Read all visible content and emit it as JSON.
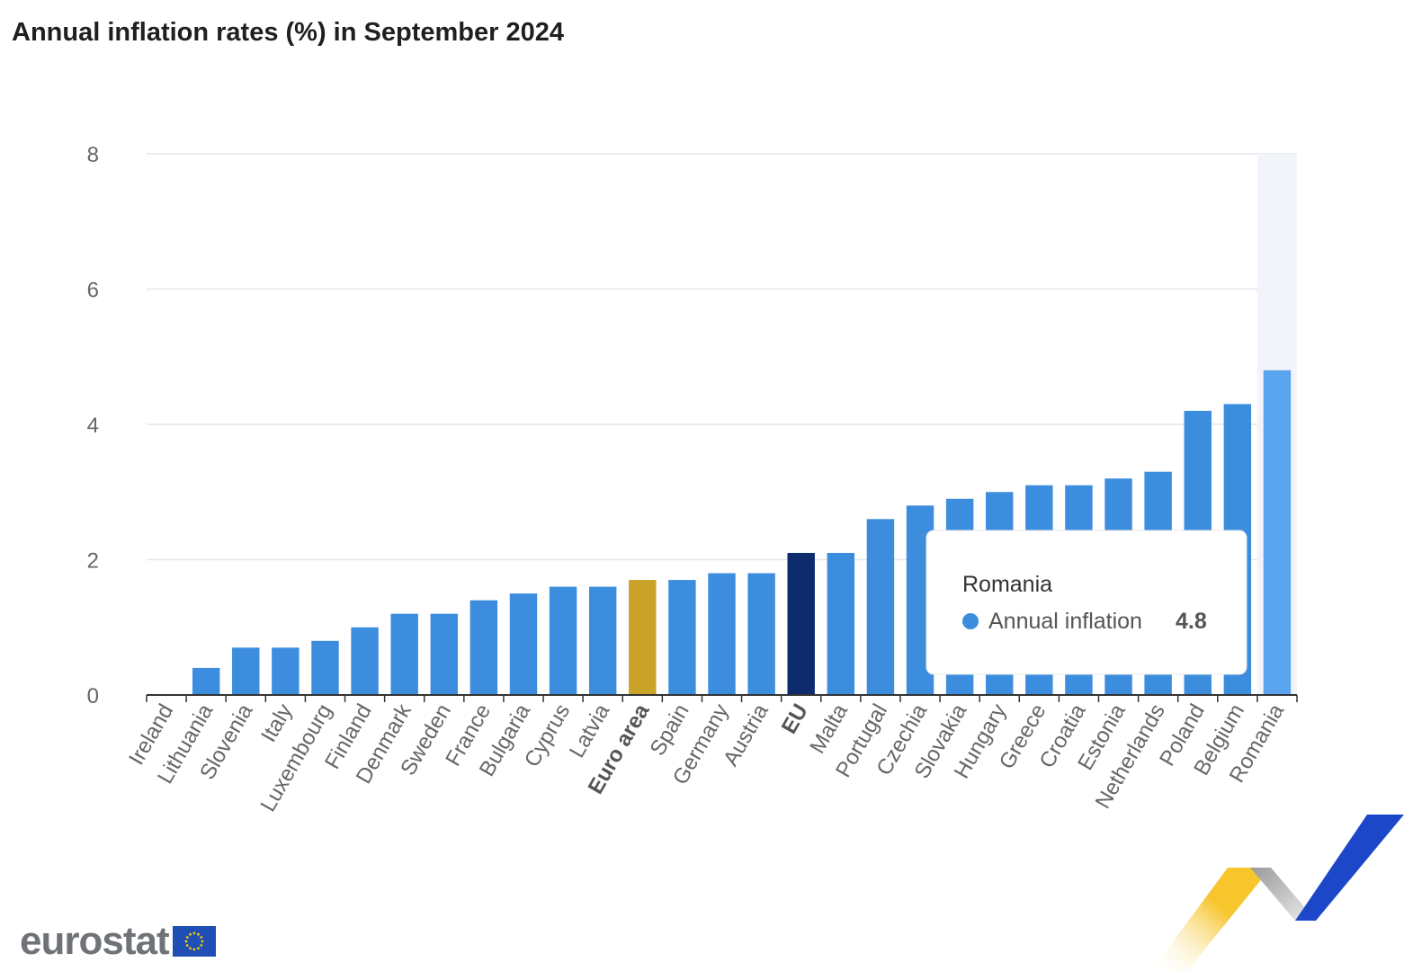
{
  "title": "Annual inflation rates (%) in September 2024",
  "logo": {
    "text": "eurostat",
    "flag_icon": "eu-flag-icon"
  },
  "colors": {
    "bar": "#3d8ddf",
    "highlight": "#5aa4ef",
    "euro_area": "#c9a227",
    "eu": "#0e2b6e",
    "grid": "#e3e7ec"
  },
  "tooltip": {
    "country": "Romania",
    "series": "Annual inflation",
    "value": "4.8"
  },
  "chart_data": {
    "type": "bar",
    "title": "Annual inflation rates (%) in September 2024",
    "xlabel": "",
    "ylabel": "",
    "ylim": [
      0,
      8
    ],
    "yticks": [
      0,
      2,
      4,
      6,
      8
    ],
    "grid": true,
    "categories": [
      "Ireland",
      "Lithuania",
      "Slovenia",
      "Italy",
      "Luxembourg",
      "Finland",
      "Denmark",
      "Sweden",
      "France",
      "Bulgaria",
      "Cyprus",
      "Latvia",
      "Euro area",
      "Spain",
      "Germany",
      "Austria",
      "EU",
      "Malta",
      "Portugal",
      "Czechia",
      "Slovakia",
      "Hungary",
      "Greece",
      "Croatia",
      "Estonia",
      "Netherlands",
      "Poland",
      "Belgium",
      "Romania"
    ],
    "series": [
      {
        "name": "Annual inflation",
        "values": [
          0.0,
          0.4,
          0.7,
          0.7,
          0.8,
          1.0,
          1.2,
          1.2,
          1.4,
          1.5,
          1.6,
          1.6,
          1.7,
          1.7,
          1.8,
          1.8,
          2.1,
          2.1,
          2.6,
          2.8,
          2.9,
          3.0,
          3.1,
          3.1,
          3.2,
          3.3,
          4.2,
          4.3,
          4.8
        ]
      }
    ],
    "bold_categories": [
      "Euro area",
      "EU"
    ],
    "special_colors": {
      "Euro area": "euro_area",
      "EU": "eu"
    },
    "highlighted": "Romania"
  }
}
